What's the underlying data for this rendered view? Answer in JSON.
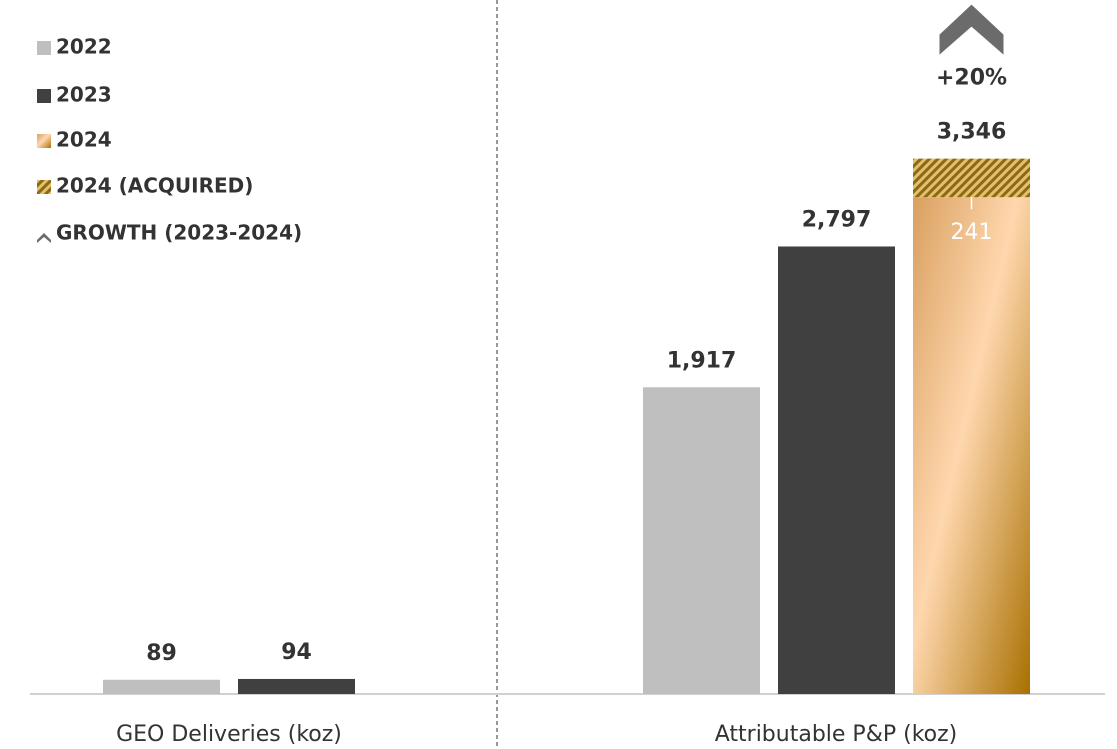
{
  "chart_data": {
    "type": "bar",
    "categories": [
      "GEO Deliveries (koz)",
      "Attributable P&P (koz)"
    ],
    "series": [
      {
        "name": "2022",
        "color": "#bfbfbf",
        "values": [
          89,
          1917
        ],
        "value_labels": [
          "89",
          "1,917"
        ]
      },
      {
        "name": "2023",
        "color": "#404040",
        "values": [
          94,
          2797
        ],
        "value_labels": [
          "94",
          "2,797"
        ]
      },
      {
        "name": "2024",
        "color": "#d9a060",
        "values": [
          null,
          3105
        ]
      },
      {
        "name": "2024 (ACQUIRED)",
        "color": "#8a6a1a",
        "pattern": "hatch",
        "stack": true,
        "values": [
          null,
          241
        ],
        "value_labels": [
          null,
          "241"
        ]
      }
    ],
    "stack_total_labels": [
      null,
      "3,346"
    ],
    "growth": {
      "name": "GROWTH (2023-2024)",
      "label": "+20%",
      "color": "#6b6b6b"
    },
    "ylim": [
      0,
      4000
    ]
  }
}
